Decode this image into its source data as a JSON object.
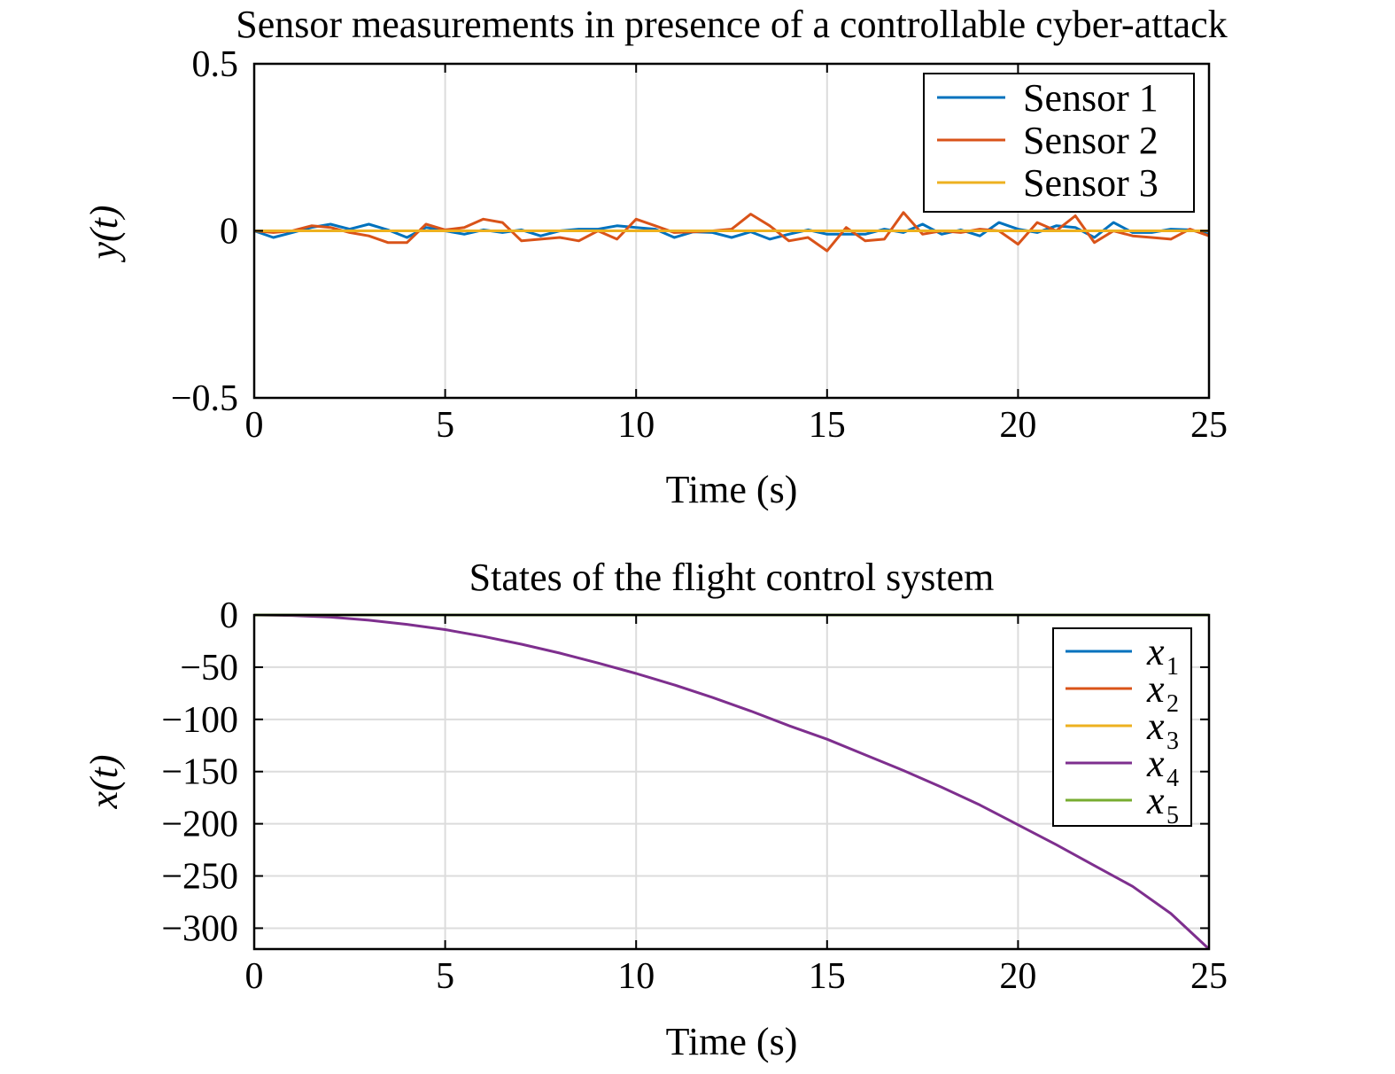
{
  "chart_data": [
    {
      "type": "line",
      "title": "Sensor measurements in presence of a controllable cyber-attack",
      "xlabel": "Time (s)",
      "ylabel": "y(t)",
      "xlim": [
        0,
        25
      ],
      "ylim": [
        -0.5,
        0.5
      ],
      "xticks": [
        0,
        5,
        10,
        15,
        20,
        25
      ],
      "xtick_labels": [
        "0",
        "5",
        "10",
        "15",
        "20",
        "25"
      ],
      "yticks": [
        0.5,
        0,
        -0.5
      ],
      "ytick_labels": [
        "0.5",
        "0",
        "−0.5"
      ],
      "grid": true,
      "legend_position": "top-right",
      "x": [
        0,
        0.5,
        1,
        1.5,
        2,
        2.5,
        3,
        3.5,
        4,
        4.5,
        5,
        5.5,
        6,
        6.5,
        7,
        7.5,
        8,
        8.5,
        9,
        9.5,
        10,
        10.5,
        11,
        11.5,
        12,
        12.5,
        13,
        13.5,
        14,
        14.5,
        15,
        15.5,
        16,
        16.5,
        17,
        17.5,
        18,
        18.5,
        19,
        19.5,
        20,
        20.5,
        21,
        21.5,
        22,
        22.5,
        23,
        23.5,
        24,
        24.5,
        25
      ],
      "series": [
        {
          "name": "Sensor 1",
          "color": "#0072BD",
          "values": [
            0,
            -0.02,
            -0.005,
            0.01,
            0.02,
            0.005,
            0.02,
            0.003,
            -0.02,
            0.01,
            0,
            -0.01,
            0.003,
            -0.005,
            0.003,
            -0.015,
            0,
            0.005,
            0.005,
            0.015,
            0.01,
            0.005,
            -0.02,
            -0.003,
            -0.005,
            -0.02,
            -0.003,
            -0.025,
            -0.01,
            0.003,
            -0.01,
            -0.01,
            -0.01,
            0.005,
            -0.005,
            0.02,
            -0.01,
            0.003,
            -0.015,
            0.025,
            0.005,
            -0.005,
            0.015,
            0.01,
            -0.02,
            0.025,
            -0.005,
            -0.005,
            0.005,
            0.003,
            -0.01
          ]
        },
        {
          "name": "Sensor 2",
          "color": "#D95319",
          "values": [
            0,
            -0.005,
            0,
            0.015,
            0.01,
            -0.005,
            -0.015,
            -0.035,
            -0.035,
            0.02,
            0.003,
            0.01,
            0.035,
            0.025,
            -0.03,
            -0.025,
            -0.02,
            -0.03,
            0,
            -0.025,
            0.035,
            0.015,
            -0.005,
            -0.003,
            0,
            0.005,
            0.05,
            0.015,
            -0.03,
            -0.02,
            -0.06,
            0.01,
            -0.03,
            -0.025,
            0.055,
            -0.01,
            0,
            -0.005,
            0.005,
            0,
            -0.04,
            0.025,
            0,
            0.045,
            -0.035,
            0,
            -0.015,
            -0.02,
            -0.025,
            0.005,
            -0.015
          ]
        },
        {
          "name": "Sensor 3",
          "color": "#EDB120",
          "values": [
            0,
            0,
            0,
            0,
            0,
            0,
            0,
            0,
            0,
            0,
            0,
            0,
            0,
            0,
            0,
            0,
            0,
            0,
            0,
            0,
            0,
            0,
            0,
            0,
            0,
            0,
            0,
            0,
            0,
            0,
            0,
            0,
            0,
            0,
            0,
            0,
            0,
            0,
            0,
            0,
            0,
            0,
            0,
            0,
            0,
            0,
            0,
            0,
            0,
            0,
            0
          ]
        }
      ]
    },
    {
      "type": "line",
      "title": "States of the flight control system",
      "xlabel": "Time (s)",
      "ylabel": "x(t)",
      "xlim": [
        0,
        25
      ],
      "ylim": [
        -320,
        0
      ],
      "xticks": [
        0,
        5,
        10,
        15,
        20,
        25
      ],
      "xtick_labels": [
        "0",
        "5",
        "10",
        "15",
        "20",
        "25"
      ],
      "yticks": [
        0,
        -50,
        -100,
        -150,
        -200,
        -250,
        -300
      ],
      "ytick_labels": [
        "0",
        "−50",
        "−100",
        "−150",
        "−200",
        "−250",
        "−300"
      ],
      "grid": true,
      "legend_position": "top-right",
      "x": [
        0,
        1,
        2,
        3,
        4,
        5,
        6,
        7,
        8,
        9,
        10,
        11,
        12,
        13,
        14,
        15,
        16,
        17,
        18,
        19,
        20,
        21,
        22,
        23,
        24,
        25
      ],
      "series": [
        {
          "name": "x",
          "subscript": "1",
          "color": "#0072BD",
          "values": [
            0,
            0,
            0,
            0,
            0,
            0,
            0,
            0,
            0,
            0,
            0,
            0,
            0,
            0,
            0,
            0,
            0,
            0,
            0,
            0,
            0,
            0,
            0,
            0,
            0,
            0
          ]
        },
        {
          "name": "x",
          "subscript": "2",
          "color": "#D95319",
          "values": [
            0,
            0,
            0,
            0,
            0,
            0,
            0,
            0,
            0,
            0,
            0,
            0,
            0,
            0,
            0,
            0,
            0,
            0,
            0,
            0,
            0,
            0,
            0,
            0,
            0,
            0
          ]
        },
        {
          "name": "x",
          "subscript": "3",
          "color": "#EDB120",
          "values": [
            0,
            0,
            0,
            0,
            0,
            0,
            0,
            0,
            0,
            0,
            0,
            0,
            0,
            0,
            0,
            0,
            0,
            0,
            0,
            0,
            0,
            0,
            0,
            0,
            0,
            0
          ]
        },
        {
          "name": "x",
          "subscript": "4",
          "color": "#7E2F8E",
          "values": [
            0,
            -0.5,
            -2,
            -5,
            -9,
            -14,
            -20.5,
            -28,
            -36.5,
            -46,
            -56,
            -67,
            -79,
            -92,
            -106,
            -119,
            -134,
            -149,
            -165,
            -182,
            -201,
            -220,
            -240,
            -260,
            -286,
            -320
          ]
        },
        {
          "name": "x",
          "subscript": "5",
          "color": "#77AC30",
          "values": [
            0,
            0,
            0,
            0,
            0,
            0,
            0,
            0,
            0,
            0,
            0,
            0,
            0,
            0,
            0,
            0,
            0,
            0,
            0,
            0,
            0,
            0,
            0,
            0,
            0,
            0
          ]
        }
      ]
    }
  ]
}
